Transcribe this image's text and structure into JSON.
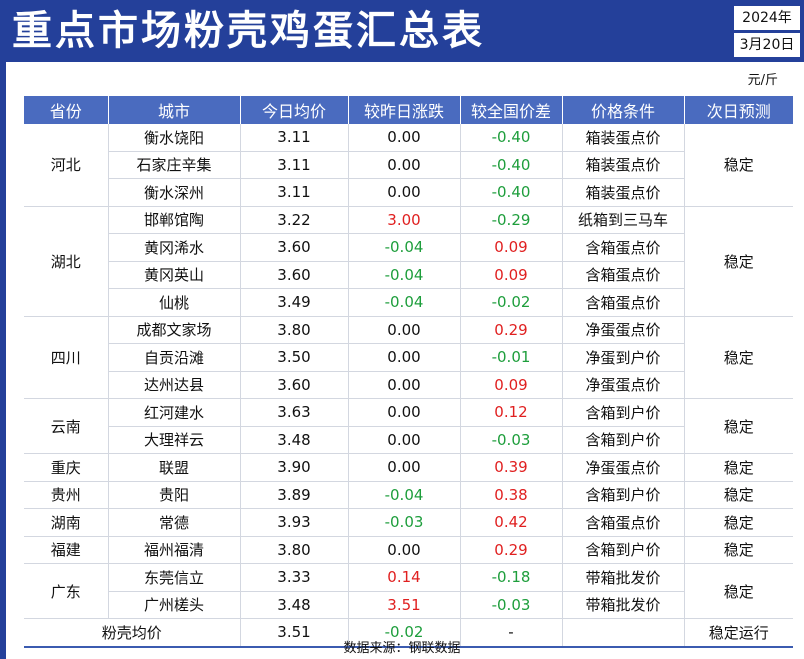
{
  "header": {
    "title": "重点市场粉壳鸡蛋汇总表",
    "year": "2024年",
    "date": "3月20日"
  },
  "unit": "元/斤",
  "columns": [
    "省份",
    "城市",
    "今日均价",
    "较昨日涨跌",
    "较全国价差",
    "价格条件",
    "次日预测"
  ],
  "groups": [
    {
      "province": "河北",
      "forecast": "稳定",
      "rows": [
        {
          "city": "衡水饶阳",
          "price": "3.11",
          "change": "0.00",
          "diff": "-0.40",
          "condition": "箱装蛋点价"
        },
        {
          "city": "石家庄辛集",
          "price": "3.11",
          "change": "0.00",
          "diff": "-0.40",
          "condition": "箱装蛋点价"
        },
        {
          "city": "衡水深州",
          "price": "3.11",
          "change": "0.00",
          "diff": "-0.40",
          "condition": "箱装蛋点价"
        }
      ]
    },
    {
      "province": "湖北",
      "forecast": "稳定",
      "rows": [
        {
          "city": "邯郸馆陶",
          "price": "3.22",
          "change": "3.00",
          "diff": "-0.29",
          "condition": "纸箱到三马车"
        },
        {
          "city": "黄冈浠水",
          "price": "3.60",
          "change": "-0.04",
          "diff": "0.09",
          "condition": "含箱蛋点价"
        },
        {
          "city": "黄冈英山",
          "price": "3.60",
          "change": "-0.04",
          "diff": "0.09",
          "condition": "含箱蛋点价"
        },
        {
          "city": "仙桃",
          "price": "3.49",
          "change": "-0.04",
          "diff": "-0.02",
          "condition": "含箱蛋点价"
        }
      ]
    },
    {
      "province": "四川",
      "forecast": "稳定",
      "rows": [
        {
          "city": "成都文家场",
          "price": "3.80",
          "change": "0.00",
          "diff": "0.29",
          "condition": "净蛋蛋点价"
        },
        {
          "city": "自贡沿滩",
          "price": "3.50",
          "change": "0.00",
          "diff": "-0.01",
          "condition": "净蛋到户价"
        },
        {
          "city": "达州达县",
          "price": "3.60",
          "change": "0.00",
          "diff": "0.09",
          "condition": "净蛋蛋点价"
        }
      ]
    },
    {
      "province": "云南",
      "forecast": "稳定",
      "rows": [
        {
          "city": "红河建水",
          "price": "3.63",
          "change": "0.00",
          "diff": "0.12",
          "condition": "含箱到户价"
        },
        {
          "city": "大理祥云",
          "price": "3.48",
          "change": "0.00",
          "diff": "-0.03",
          "condition": "含箱到户价"
        }
      ]
    },
    {
      "province": "重庆",
      "forecast": "稳定",
      "rows": [
        {
          "city": "联盟",
          "price": "3.90",
          "change": "0.00",
          "diff": "0.39",
          "condition": "净蛋蛋点价"
        }
      ]
    },
    {
      "province": "贵州",
      "forecast": "稳定",
      "rows": [
        {
          "city": "贵阳",
          "price": "3.89",
          "change": "-0.04",
          "diff": "0.38",
          "condition": "含箱到户价"
        }
      ]
    },
    {
      "province": "湖南",
      "forecast": "稳定",
      "rows": [
        {
          "city": "常德",
          "price": "3.93",
          "change": "-0.03",
          "diff": "0.42",
          "condition": "含箱蛋点价"
        }
      ]
    },
    {
      "province": "福建",
      "forecast": "稳定",
      "rows": [
        {
          "city": "福州福清",
          "price": "3.80",
          "change": "0.00",
          "diff": "0.29",
          "condition": "含箱到户价"
        }
      ]
    },
    {
      "province": "广东",
      "forecast": "稳定",
      "rows": [
        {
          "city": "东莞信立",
          "price": "3.33",
          "change": "0.14",
          "diff": "-0.18",
          "condition": "带箱批发价"
        },
        {
          "city": "广州槎头",
          "price": "3.48",
          "change": "3.51",
          "diff": "-0.03",
          "condition": "带箱批发价"
        }
      ]
    }
  ],
  "summary": {
    "label": "粉壳均价",
    "price": "3.51",
    "change": "-0.02",
    "diff": "-",
    "condition": "",
    "forecast": "稳定运行"
  },
  "colors": {
    "banner": "#24409a",
    "header": "#4a6bbf",
    "rise": "#e02020",
    "fall": "#1e9e3c"
  },
  "source": "数据来源：钢联数据"
}
